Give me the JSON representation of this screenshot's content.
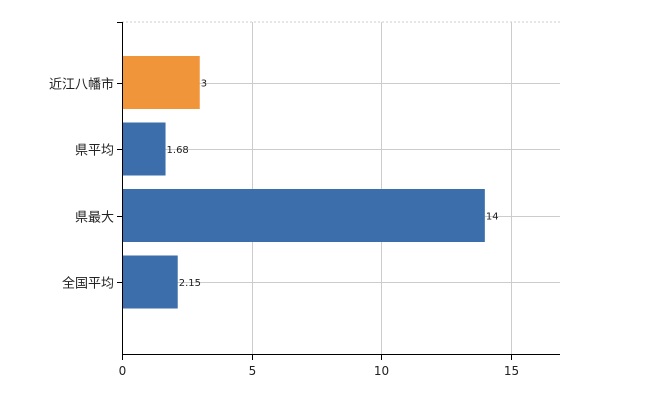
{
  "chart_data": {
    "type": "bar",
    "orientation": "horizontal",
    "categories": [
      "近江八幡市",
      "県平均",
      "県最大",
      "全国平均"
    ],
    "values": [
      3,
      1.68,
      14,
      2.15
    ],
    "data_labels": [
      "3",
      "1.68",
      "14",
      "2.15"
    ],
    "bar_colors": [
      "#f0953a",
      "#3b6eaa",
      "#3b6eaa",
      "#3b6eaa"
    ],
    "xlim": [
      0,
      16.9
    ],
    "x_ticks": [
      0,
      5,
      10,
      15
    ],
    "x_tick_labels": [
      "0",
      "5",
      "10",
      "15"
    ],
    "grid": true,
    "grid_style": "dotted",
    "title": "",
    "xlabel": "",
    "ylabel": ""
  },
  "colors": {
    "highlight": "#f0953a",
    "bar": "#3b6eaa",
    "grid": "#cccccc",
    "axis": "#000000"
  }
}
